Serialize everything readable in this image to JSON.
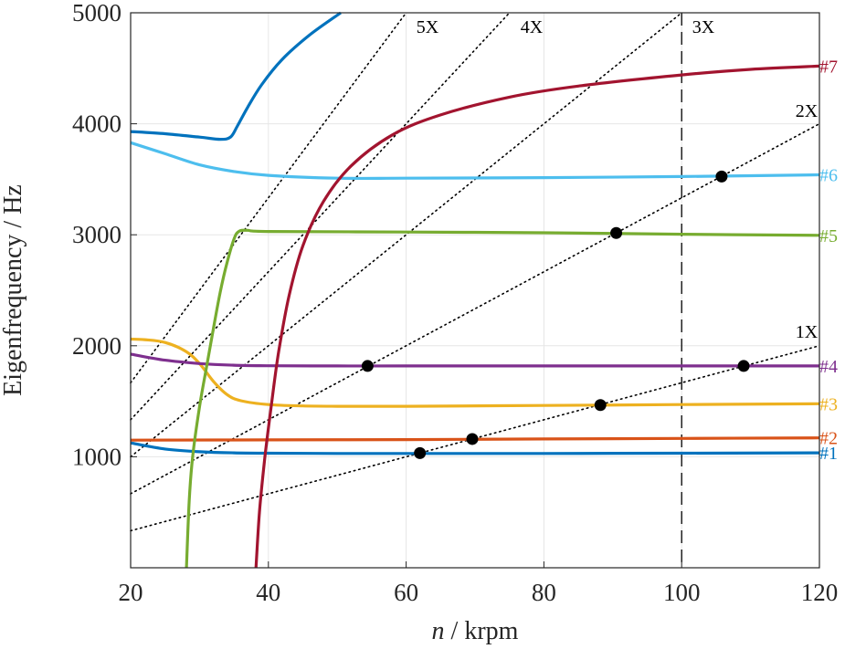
{
  "chart_data": {
    "type": "line",
    "xlabel_italic": "n",
    "xlabel_rest": " / krpm",
    "ylabel": "Eigenfrequency / Hz",
    "xlim": [
      20,
      120
    ],
    "ylim": [
      0,
      5000
    ],
    "x_ticks": [
      20,
      40,
      60,
      80,
      100,
      120
    ],
    "y_ticks": [
      1000,
      2000,
      3000,
      4000,
      5000
    ],
    "grid": true,
    "series": [
      {
        "name": "#1",
        "color": "#0072BD",
        "points": [
          [
            20,
            1125
          ],
          [
            25,
            1070
          ],
          [
            30,
            1045
          ],
          [
            35,
            1035
          ],
          [
            40,
            1032
          ],
          [
            50,
            1030
          ],
          [
            60,
            1030
          ],
          [
            80,
            1030
          ],
          [
            100,
            1032
          ],
          [
            120,
            1035
          ]
        ]
      },
      {
        "name": "#2",
        "color": "#D95319",
        "points": [
          [
            20,
            1150
          ],
          [
            40,
            1152
          ],
          [
            60,
            1155
          ],
          [
            80,
            1160
          ],
          [
            100,
            1165
          ],
          [
            120,
            1170
          ]
        ]
      },
      {
        "name": "#3",
        "color": "#EDB120",
        "points": [
          [
            20,
            2060
          ],
          [
            22,
            2055
          ],
          [
            25,
            2030
          ],
          [
            28,
            1950
          ],
          [
            30,
            1840
          ],
          [
            32,
            1680
          ],
          [
            34,
            1560
          ],
          [
            36,
            1505
          ],
          [
            40,
            1470
          ],
          [
            45,
            1458
          ],
          [
            50,
            1455
          ],
          [
            60,
            1455
          ],
          [
            80,
            1462
          ],
          [
            100,
            1470
          ],
          [
            120,
            1478
          ]
        ]
      },
      {
        "name": "#4",
        "color": "#7E2F8E",
        "points": [
          [
            20,
            1925
          ],
          [
            25,
            1870
          ],
          [
            30,
            1840
          ],
          [
            35,
            1825
          ],
          [
            40,
            1820
          ],
          [
            50,
            1818
          ],
          [
            60,
            1818
          ],
          [
            80,
            1818
          ],
          [
            100,
            1818
          ],
          [
            120,
            1818
          ]
        ]
      },
      {
        "name": "#5",
        "color": "#77AC30",
        "points": [
          [
            28.1,
            0
          ],
          [
            28.5,
            600
          ],
          [
            29,
            1000
          ],
          [
            30,
            1450
          ],
          [
            31,
            1800
          ],
          [
            32,
            2150
          ],
          [
            33,
            2480
          ],
          [
            34,
            2750
          ],
          [
            35,
            2960
          ],
          [
            35.7,
            3030
          ],
          [
            37,
            3040
          ],
          [
            40,
            3030
          ],
          [
            60,
            3025
          ],
          [
            80,
            3018
          ],
          [
            100,
            3005
          ],
          [
            120,
            2995
          ]
        ]
      },
      {
        "name": "#6",
        "color": "#4DBEEE",
        "points": [
          [
            20,
            3830
          ],
          [
            25,
            3730
          ],
          [
            30,
            3630
          ],
          [
            35,
            3570
          ],
          [
            40,
            3535
          ],
          [
            50,
            3510
          ],
          [
            60,
            3510
          ],
          [
            80,
            3515
          ],
          [
            100,
            3525
          ],
          [
            120,
            3540
          ]
        ]
      },
      {
        "name": "#7",
        "color": "#A2142F",
        "points": [
          [
            38.2,
            0
          ],
          [
            38.7,
            500
          ],
          [
            39.5,
            1000
          ],
          [
            40.5,
            1500
          ],
          [
            41.5,
            1950
          ],
          [
            43,
            2450
          ],
          [
            45,
            2900
          ],
          [
            48,
            3300
          ],
          [
            52,
            3620
          ],
          [
            58,
            3900
          ],
          [
            65,
            4080
          ],
          [
            75,
            4240
          ],
          [
            85,
            4340
          ],
          [
            100,
            4440
          ],
          [
            110,
            4490
          ],
          [
            120,
            4520
          ]
        ]
      },
      {
        "name": "",
        "color": "#0072BD",
        "points": [
          [
            20,
            3930
          ],
          [
            25,
            3910
          ],
          [
            30,
            3880
          ],
          [
            33,
            3860
          ],
          [
            34.5,
            3880
          ],
          [
            35.5,
            3980
          ],
          [
            37,
            4150
          ],
          [
            39,
            4350
          ],
          [
            42,
            4580
          ],
          [
            46,
            4800
          ],
          [
            50.5,
            5000
          ]
        ]
      }
    ],
    "order_lines": [
      {
        "label": "1X",
        "slope": 16.667
      },
      {
        "label": "2X",
        "slope": 33.333
      },
      {
        "label": "3X",
        "slope": 50
      },
      {
        "label": "4X",
        "slope": 66.667
      },
      {
        "label": "5X",
        "slope": 83.333
      }
    ],
    "vertical_line": {
      "x": 100,
      "style": "dashed"
    },
    "intersections": [
      [
        54.4,
        1818
      ],
      [
        62,
        1033
      ],
      [
        69.6,
        1160
      ],
      [
        88.2,
        1466
      ],
      [
        90.5,
        3016
      ],
      [
        105.8,
        3525
      ],
      [
        109,
        1818
      ]
    ]
  }
}
